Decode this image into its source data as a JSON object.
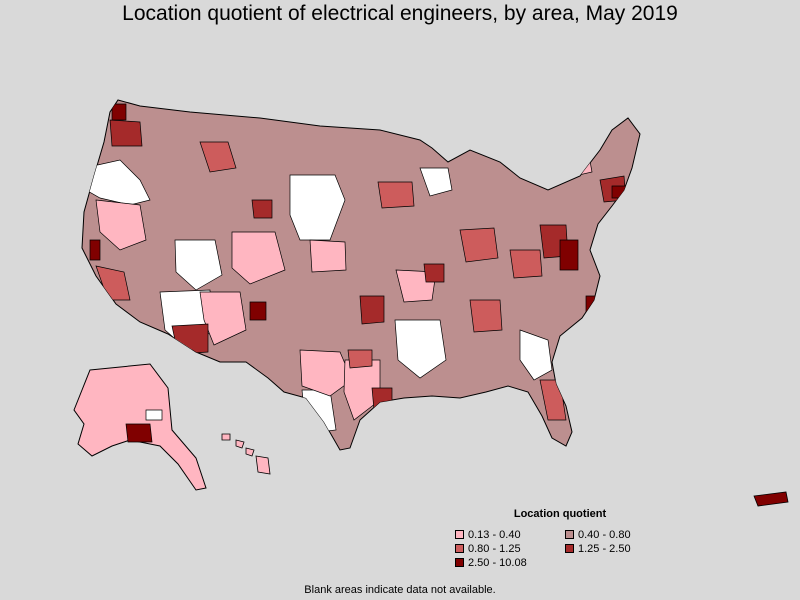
{
  "title": "Location quotient of electrical engineers, by area, May 2019",
  "legend": {
    "title": "Location quotient",
    "items": [
      {
        "label": "0.13 - 0.40",
        "color": "#ffb6c1"
      },
      {
        "label": "0.40 - 0.80",
        "color": "#bc8f8f"
      },
      {
        "label": "0.80 - 1.25",
        "color": "#cd5c5c"
      },
      {
        "label": "1.25 - 2.50",
        "color": "#a52a2a"
      },
      {
        "label": "2.50 - 10.08",
        "color": "#800000"
      }
    ]
  },
  "no_data_color": "#ffffff",
  "footnote": "Blank areas indicate data not available."
}
